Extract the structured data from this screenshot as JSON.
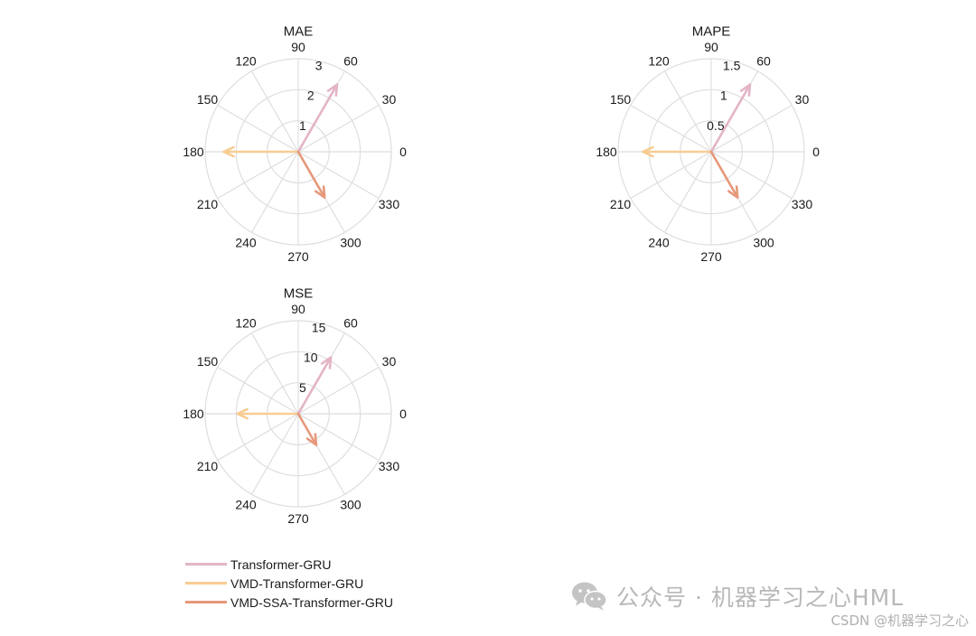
{
  "chart_data": [
    {
      "type": "polar-compass",
      "title": "MAE",
      "angle_ticks": [
        "0",
        "30",
        "60",
        "90",
        "120",
        "150",
        "180",
        "210",
        "240",
        "270",
        "300",
        "330"
      ],
      "radial_ticks": [
        1,
        2,
        3
      ],
      "rmax": 3,
      "series": [
        {
          "name": "Transformer-GRU",
          "angle": 60,
          "value": 2.5,
          "color": "#e3b4c6"
        },
        {
          "name": "VMD-Transformer-GRU",
          "angle": 180,
          "value": 2.4,
          "color": "#f7cc92"
        },
        {
          "name": "VMD-SSA-Transformer-GRU",
          "angle": 300,
          "value": 1.7,
          "color": "#e6987a"
        }
      ]
    },
    {
      "type": "polar-compass",
      "title": "MAPE",
      "angle_ticks": [
        "0",
        "30",
        "60",
        "90",
        "120",
        "150",
        "180",
        "210",
        "240",
        "270",
        "300",
        "330"
      ],
      "radial_ticks": [
        0.5,
        1,
        1.5
      ],
      "radial_tick_labels": [
        "0.5",
        "1",
        "1.5"
      ],
      "rmax": 1.5,
      "series": [
        {
          "name": "Transformer-GRU",
          "angle": 60,
          "value": 1.25,
          "color": "#e3b4c6"
        },
        {
          "name": "VMD-Transformer-GRU",
          "angle": 180,
          "value": 1.1,
          "color": "#f7cc92"
        },
        {
          "name": "VMD-SSA-Transformer-GRU",
          "angle": 300,
          "value": 0.85,
          "color": "#e6987a"
        }
      ]
    },
    {
      "type": "polar-compass",
      "title": "MSE",
      "angle_ticks": [
        "0",
        "30",
        "60",
        "90",
        "120",
        "150",
        "180",
        "210",
        "240",
        "270",
        "300",
        "330"
      ],
      "radial_ticks": [
        5,
        10,
        15
      ],
      "rmax": 15,
      "series": [
        {
          "name": "Transformer-GRU",
          "angle": 60,
          "value": 10.5,
          "color": "#e3b4c6"
        },
        {
          "name": "VMD-Transformer-GRU",
          "angle": 180,
          "value": 9.8,
          "color": "#f7cc92"
        },
        {
          "name": "VMD-SSA-Transformer-GRU",
          "angle": 300,
          "value": 5.8,
          "color": "#e6987a"
        }
      ]
    }
  ],
  "legend": {
    "items": [
      {
        "label": "Transformer-GRU",
        "color": "#e3b4c6"
      },
      {
        "label": "VMD-Transformer-GRU",
        "color": "#f7cc92"
      },
      {
        "label": "VMD-SSA-Transformer-GRU",
        "color": "#e6987a"
      }
    ]
  },
  "watermark": {
    "text": "公众号 · 机器学习之心HML",
    "icon": "wechat-icon"
  },
  "credit": {
    "text": "CSDN @机器学习之心"
  }
}
